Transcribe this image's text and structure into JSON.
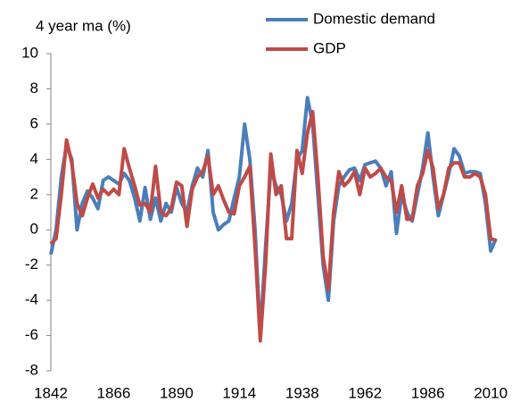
{
  "chart_data": {
    "type": "line",
    "y_label": "4 year ma (%)",
    "x": [
      1842,
      1844,
      1846,
      1848,
      1850,
      1852,
      1854,
      1856,
      1858,
      1860,
      1862,
      1864,
      1866,
      1868,
      1870,
      1872,
      1874,
      1876,
      1878,
      1880,
      1882,
      1884,
      1886,
      1888,
      1890,
      1892,
      1894,
      1896,
      1898,
      1900,
      1902,
      1904,
      1906,
      1908,
      1910,
      1912,
      1914,
      1916,
      1918,
      1920,
      1922,
      1924,
      1926,
      1928,
      1930,
      1932,
      1934,
      1936,
      1938,
      1940,
      1942,
      1944,
      1946,
      1948,
      1950,
      1952,
      1954,
      1956,
      1958,
      1960,
      1962,
      1964,
      1966,
      1968,
      1970,
      1972,
      1974,
      1976,
      1978,
      1980,
      1982,
      1984,
      1986,
      1988,
      1990,
      1992,
      1994,
      1996,
      1998,
      2000,
      2002,
      2004,
      2006,
      2008,
      2010,
      2012
    ],
    "series": [
      {
        "name": "Domestic demand",
        "color": "#4a7ebb",
        "values": [
          -1.4,
          0,
          3,
          4.8,
          4.0,
          0,
          1.5,
          2.2,
          1.8,
          1.2,
          2.8,
          3.0,
          2.8,
          2.6,
          3.2,
          2.8,
          1.8,
          0.5,
          2.4,
          0.6,
          1.8,
          0.5,
          1.5,
          1.0,
          2.4,
          1.5,
          1.0,
          2.5,
          3.5,
          3.0,
          4.5,
          1.0,
          0,
          0.3,
          0.5,
          1.8,
          3.0,
          6.0,
          4.0,
          0,
          -6.0,
          -1.0,
          3.5,
          2.5,
          2.0,
          0.5,
          1.5,
          4.0,
          4.5,
          7.5,
          6.0,
          2.0,
          -2.0,
          -4.0,
          0.5,
          2.5,
          3.0,
          3.4,
          3.5,
          2.8,
          3.7,
          3.8,
          3.9,
          3.5,
          2.5,
          3.3,
          -0.2,
          2.0,
          1.0,
          0.5,
          2.0,
          3.5,
          5.5,
          3.0,
          0.8,
          2.0,
          3.2,
          4.6,
          4.2,
          3.2,
          3.3,
          3.3,
          3.2,
          1.5,
          -1.2,
          -0.5
        ]
      },
      {
        "name": "GDP",
        "color": "#be4b48",
        "values": [
          -0.8,
          -0.5,
          2,
          5.1,
          3.8,
          1.5,
          0.8,
          1.8,
          2.6,
          1.8,
          2.3,
          2.0,
          2.3,
          2.0,
          4.6,
          3.5,
          2.5,
          1.4,
          1.5,
          1.0,
          3.6,
          1.0,
          0.8,
          1.2,
          2.7,
          2.5,
          0.2,
          2.3,
          3.0,
          3.3,
          4.2,
          2.0,
          2.5,
          1.7,
          1.0,
          0.9,
          2.5,
          3.0,
          3.6,
          -1.0,
          -6.3,
          -2.0,
          4.3,
          2.0,
          2.5,
          -0.5,
          -0.5,
          4.5,
          3.2,
          5.5,
          6.7,
          3.0,
          -1.5,
          -3.4,
          1.0,
          3.3,
          2.5,
          2.8,
          3.3,
          2.0,
          3.5,
          3.0,
          3.2,
          3.5,
          3.0,
          2.8,
          1.0,
          2.5,
          0.6,
          0.6,
          2.5,
          3.2,
          4.5,
          3.5,
          1.2,
          2.0,
          3.5,
          3.8,
          3.8,
          3.0,
          3.0,
          3.2,
          3.0,
          2.0,
          -0.5,
          -0.6
        ]
      }
    ],
    "xlim": [
      1842,
      2012
    ],
    "xticks": [
      1842,
      1866,
      1890,
      1914,
      1938,
      1962,
      1986,
      2010
    ],
    "ylim": [
      -8,
      10
    ],
    "yticks": [
      -8,
      -6,
      -4,
      -2,
      0,
      2,
      4,
      6,
      8,
      10
    ],
    "legend": "top-right"
  }
}
